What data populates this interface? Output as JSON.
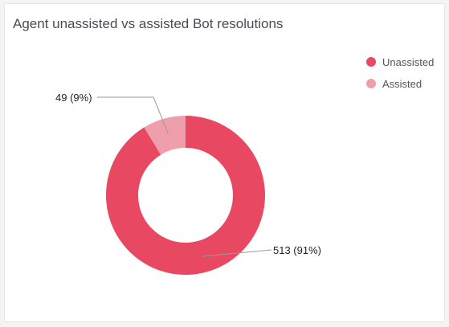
{
  "chart_data": {
    "type": "pie",
    "title": "Agent unassisted vs assisted Bot resolutions",
    "donut": true,
    "legend_position": "top-right",
    "slices": [
      {
        "label": "Unassisted",
        "value": 513,
        "percent": 91,
        "color": "#e94862",
        "data_label": "513 (91%)"
      },
      {
        "label": "Assisted",
        "value": 49,
        "percent": 9,
        "color": "#ef9fab",
        "data_label": "49 (9%)"
      }
    ]
  }
}
